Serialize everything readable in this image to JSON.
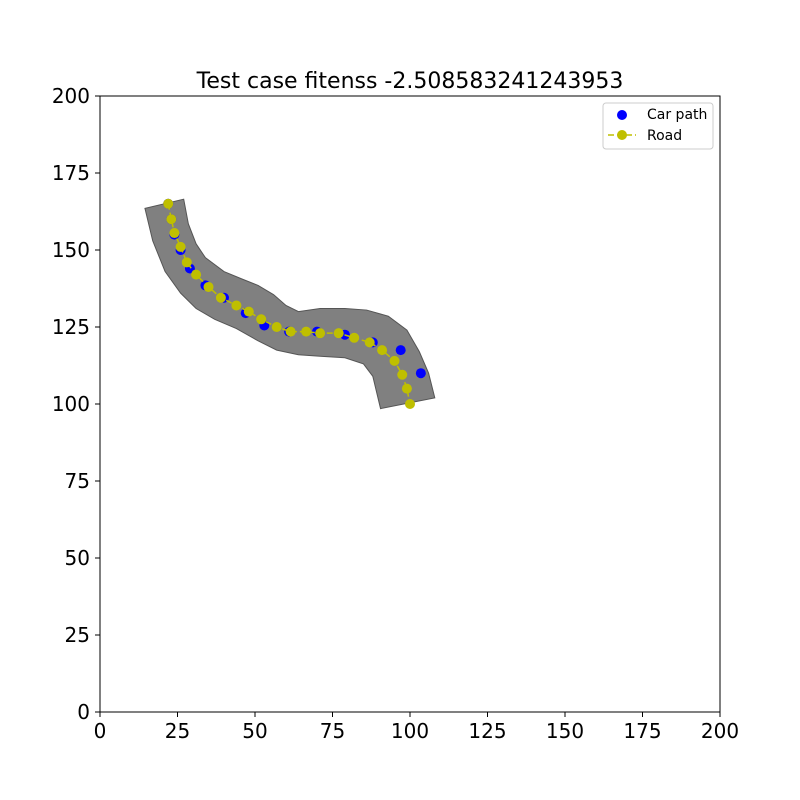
{
  "chart_data": {
    "type": "scatter",
    "title": "Test case fitenss -2.508583241243953",
    "xlabel": "",
    "ylabel": "",
    "xlim": [
      0,
      200
    ],
    "ylim": [
      0,
      200
    ],
    "x_ticks": [
      "0",
      "25",
      "50",
      "75",
      "100",
      "125",
      "150",
      "175",
      "200"
    ],
    "y_ticks": [
      "0",
      "25",
      "50",
      "75",
      "100",
      "125",
      "150",
      "175",
      "200"
    ],
    "grid": false,
    "legend_position": "top-right",
    "legend": [
      {
        "label": "Car path",
        "marker": "circle",
        "color": "#0000ff"
      },
      {
        "label": "Road",
        "marker": "circle-dashed-line",
        "color": "#bfbf00"
      }
    ],
    "road_area": {
      "color": "#808080",
      "polygon": [
        [
          14.5,
          163.5
        ],
        [
          17,
          153
        ],
        [
          21,
          143
        ],
        [
          26,
          136
        ],
        [
          31,
          131
        ],
        [
          37,
          127.5
        ],
        [
          44,
          124.5
        ],
        [
          51,
          120.5
        ],
        [
          57,
          117.5
        ],
        [
          64,
          116
        ],
        [
          71,
          115.5
        ],
        [
          79,
          115
        ],
        [
          85,
          113
        ],
        [
          88,
          109
        ],
        [
          90.5,
          98.5
        ],
        [
          108,
          102
        ],
        [
          106,
          110
        ],
        [
          103,
          117
        ],
        [
          99,
          124
        ],
        [
          93,
          128.5
        ],
        [
          86,
          130.5
        ],
        [
          79,
          131
        ],
        [
          71,
          131
        ],
        [
          64,
          130
        ],
        [
          60,
          132
        ],
        [
          56,
          135.5
        ],
        [
          51,
          138.5
        ],
        [
          46,
          140.5
        ],
        [
          40,
          143
        ],
        [
          34,
          147.5
        ],
        [
          31,
          152
        ],
        [
          28.5,
          158.5
        ],
        [
          27,
          166.5
        ]
      ]
    },
    "series": [
      {
        "name": "Car path",
        "color": "#0000ff",
        "style": "scatter",
        "points": [
          [
            22,
            165
          ],
          [
            23,
            160
          ],
          [
            24,
            155
          ],
          [
            26,
            150
          ],
          [
            29,
            144
          ],
          [
            34,
            138.5
          ],
          [
            40,
            134.5
          ],
          [
            47,
            129.5
          ],
          [
            53,
            125.5
          ],
          [
            61,
            123.5
          ],
          [
            70,
            123.5
          ],
          [
            79,
            122.5
          ],
          [
            88,
            120
          ],
          [
            97,
            117.5
          ],
          [
            103.5,
            110
          ]
        ]
      },
      {
        "name": "Road",
        "color": "#bfbf00",
        "style": "dashed-line-with-markers",
        "points": [
          [
            22,
            165
          ],
          [
            23,
            160
          ],
          [
            24,
            155.5
          ],
          [
            26,
            151
          ],
          [
            28,
            146
          ],
          [
            31,
            142
          ],
          [
            35,
            138
          ],
          [
            39,
            134.5
          ],
          [
            44,
            132
          ],
          [
            48,
            130
          ],
          [
            52,
            127.5
          ],
          [
            57,
            125
          ],
          [
            61.5,
            123.5
          ],
          [
            66.5,
            123.5
          ],
          [
            71,
            123
          ],
          [
            77,
            123
          ],
          [
            82,
            121.5
          ],
          [
            87,
            120
          ],
          [
            91,
            117.5
          ],
          [
            95,
            114
          ],
          [
            97.5,
            109.5
          ],
          [
            99,
            105
          ],
          [
            100,
            100
          ]
        ]
      }
    ]
  }
}
